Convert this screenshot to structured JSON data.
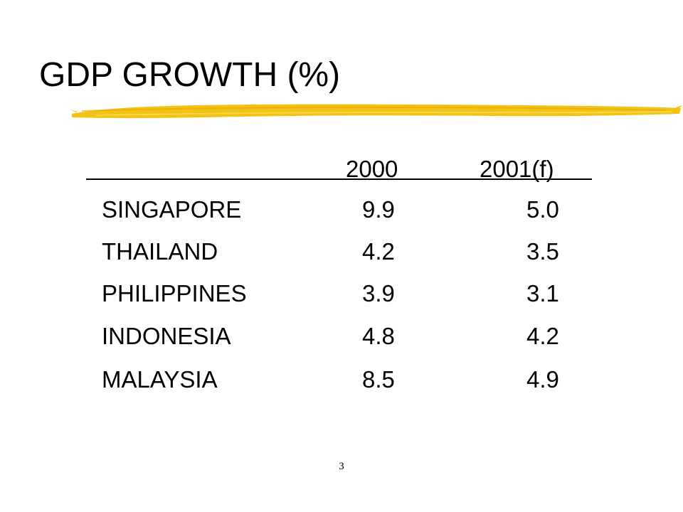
{
  "slide": {
    "title": "GDP GROWTH (%)",
    "accent_color": "#f2c215",
    "page_number": "3"
  },
  "table": {
    "headers": [
      "",
      "2000",
      "2001(f)"
    ],
    "rows": [
      {
        "country": "SINGAPORE",
        "y2000": "9.9",
        "y2001": "5.0"
      },
      {
        "country": "THAILAND",
        "y2000": "4.2",
        "y2001": "3.5"
      },
      {
        "country": "PHILIPPINES",
        "y2000": "3.9",
        "y2001": "3.1"
      },
      {
        "country": "INDONESIA",
        "y2000": "4.8",
        "y2001": "4.2"
      },
      {
        "country": "MALAYSIA",
        "y2000": "8.5",
        "y2001": "4.9"
      }
    ]
  }
}
